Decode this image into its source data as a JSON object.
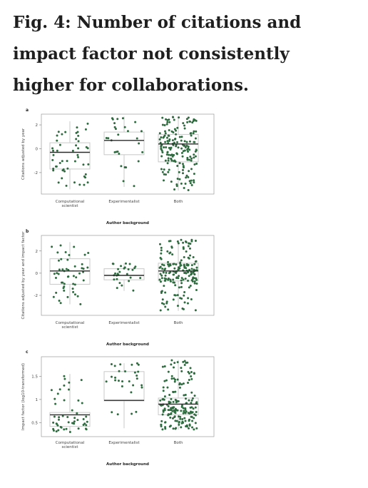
{
  "figure": {
    "title": "Fig. 4: Number of citations and impact factor not consistently higher for collaborations."
  },
  "colors": {
    "point": "#2e6b3f",
    "box": "#c8c8c8",
    "median": "#2a2a2a",
    "frame": "#9a9a9a"
  },
  "chart_data": [
    {
      "type": "box",
      "panel": "a",
      "categories": [
        "Computational scientist",
        "Experimentalist",
        "Both"
      ],
      "ylabel": "Citations adjusted by year",
      "xlabel": "Author background",
      "yticks": [
        -2,
        0,
        2
      ],
      "ylim": [
        -3.8,
        2.9
      ],
      "grid": false,
      "series": [
        {
          "category": "Computational scientist",
          "min": -3.4,
          "q1": -1.7,
          "median": -0.3,
          "q3": 0.5,
          "max": 2.3,
          "n_points": 50
        },
        {
          "category": "Experimentalist",
          "min": -3.2,
          "q1": -0.5,
          "median": 0.7,
          "q3": 1.4,
          "max": 2.7,
          "n_points": 28
        },
        {
          "category": "Both",
          "min": -3.5,
          "q1": -1.1,
          "median": 0.4,
          "q3": 1.2,
          "max": 2.7,
          "n_points": 180
        }
      ]
    },
    {
      "type": "box",
      "panel": "b",
      "categories": [
        "Computational scientist",
        "Experimentalist",
        "Both"
      ],
      "ylabel": "Citations adjusted by year and impact factor",
      "xlabel": "Author background",
      "yticks": [
        -2,
        0,
        2
      ],
      "ylim": [
        -3.8,
        3.4
      ],
      "grid": false,
      "series": [
        {
          "category": "Computational scientist",
          "min": -2.8,
          "q1": -1.0,
          "median": 0.2,
          "q3": 1.3,
          "max": 2.8,
          "n_points": 50
        },
        {
          "category": "Experimentalist",
          "min": -1.6,
          "q1": -0.6,
          "median": -0.2,
          "q3": 0.4,
          "max": 0.9,
          "n_points": 28
        },
        {
          "category": "Both",
          "min": -3.4,
          "q1": -0.7,
          "median": 0.2,
          "q3": 0.9,
          "max": 3.0,
          "n_points": 180
        }
      ]
    },
    {
      "type": "box",
      "panel": "c",
      "categories": [
        "Computational scientist",
        "Experimentalist",
        "Both"
      ],
      "ylabel": "Impact factor (log10-transformed)",
      "xlabel": "Author background",
      "yticks": [
        0.5,
        1.0,
        1.5
      ],
      "ylim": [
        0.2,
        1.92
      ],
      "grid": false,
      "series": [
        {
          "category": "Computational scientist",
          "min": 0.3,
          "q1": 0.42,
          "median": 0.67,
          "q3": 0.72,
          "max": 1.55,
          "n_points": 50
        },
        {
          "category": "Experimentalist",
          "min": 0.38,
          "q1": 0.97,
          "median": 0.98,
          "q3": 1.6,
          "max": 1.78,
          "n_points": 28
        },
        {
          "category": "Both",
          "min": 0.35,
          "q1": 0.67,
          "median": 0.9,
          "q3": 1.03,
          "max": 1.85,
          "n_points": 180
        }
      ]
    }
  ]
}
